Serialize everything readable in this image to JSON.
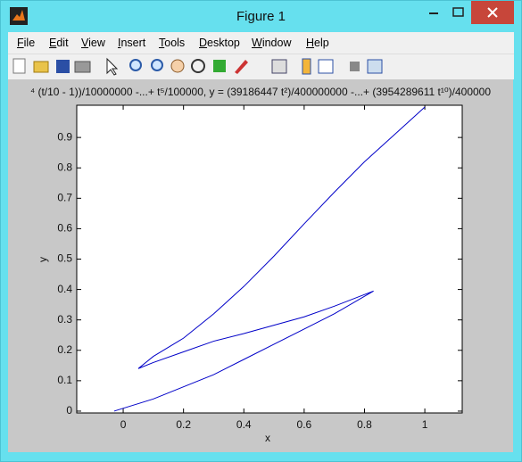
{
  "window": {
    "title": "Figure 1",
    "menu": [
      "File",
      "Edit",
      "View",
      "Insert",
      "Tools",
      "Desktop",
      "Window",
      "Help"
    ]
  },
  "chart_data": {
    "type": "line",
    "title": "⁴ (t/10 - 1))/10000000 -...+ t⁵/100000, y = (39186447 t²)/400000000 -...+ (3954289611 t¹⁰)/400000",
    "xlabel": "x",
    "ylabel": "y",
    "series": [
      {
        "color": "#0000c8",
        "x": [
          -0.03,
          0.1,
          0.2,
          0.3,
          0.4,
          0.5,
          0.6,
          0.7,
          0.83,
          0.7,
          0.6,
          0.4,
          0.3,
          0.2,
          0.1,
          0.05,
          0.1,
          0.2,
          0.3,
          0.4,
          0.5,
          0.6,
          0.7,
          0.8,
          0.9,
          1.0
        ],
        "values": [
          0,
          0.04,
          0.08,
          0.12,
          0.17,
          0.22,
          0.27,
          0.32,
          0.395,
          0.345,
          0.31,
          0.255,
          0.23,
          0.195,
          0.16,
          0.14,
          0.18,
          0.24,
          0.32,
          0.41,
          0.51,
          0.616,
          0.72,
          0.82,
          0.91,
          1.0
        ]
      }
    ],
    "xlim": [
      -0.154,
      1.124
    ],
    "ylim": [
      -0.006,
      1.006
    ],
    "xticks": [
      0,
      0.2,
      0.4,
      0.6,
      0.8,
      1
    ],
    "yticks": [
      0,
      0.1,
      0.2,
      0.3,
      0.4,
      0.5,
      0.6,
      0.7,
      0.8,
      0.9
    ],
    "grid": false
  }
}
